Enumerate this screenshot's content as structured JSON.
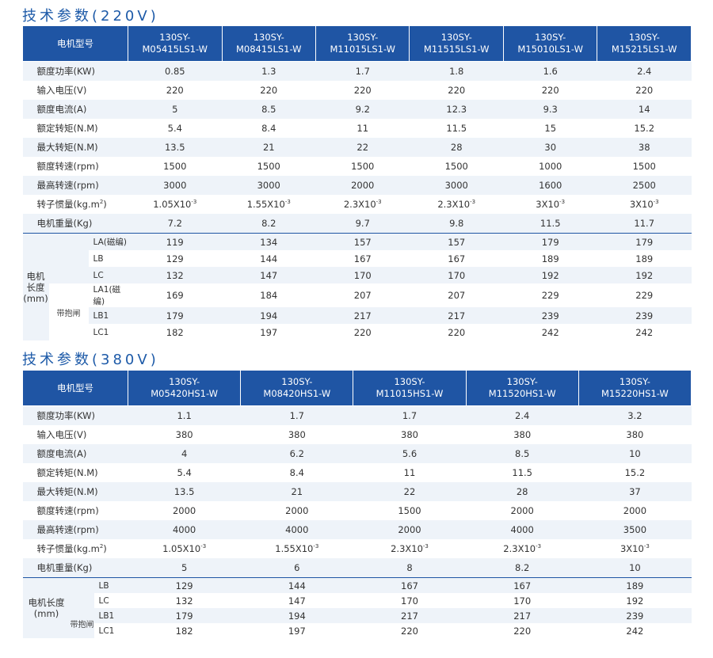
{
  "sections": [
    {
      "title": "技术参数(220V)",
      "header_label": "电机型号",
      "models": [
        [
          "130SY-",
          "M05415LS1-W"
        ],
        [
          "130SY-",
          "M08415LS1-W"
        ],
        [
          "130SY-",
          "M11015LS1-W"
        ],
        [
          "130SY-",
          "M11515LS1-W"
        ],
        [
          "130SY-",
          "M15010LS1-W"
        ],
        [
          "130SY-",
          "M15215LS1-W"
        ]
      ],
      "rows": [
        {
          "label": "额度功率(KW)",
          "values": [
            "0.85",
            "1.3",
            "1.7",
            "1.8",
            "1.6",
            "2.4"
          ]
        },
        {
          "label": "输入电压(V)",
          "values": [
            "220",
            "220",
            "220",
            "220",
            "220",
            "220"
          ]
        },
        {
          "label": "额度电流(A)",
          "values": [
            "5",
            "8.5",
            "9.2",
            "12.3",
            "9.3",
            "14"
          ]
        },
        {
          "label": "额定转矩(N.M)",
          "values": [
            "5.4",
            "8.4",
            "11",
            "11.5",
            "15",
            "15.2"
          ]
        },
        {
          "label": "最大转矩(N.M)",
          "values": [
            "13.5",
            "21",
            "22",
            "28",
            "30",
            "38"
          ]
        },
        {
          "label": "额度转速(rpm)",
          "values": [
            "1500",
            "1500",
            "1500",
            "1500",
            "1000",
            "1500"
          ]
        },
        {
          "label": "最高转速(rpm)",
          "values": [
            "3000",
            "3000",
            "2000",
            "3000",
            "1600",
            "2500"
          ]
        },
        {
          "label": "转子惯量(kg.m",
          "label_sup": "2",
          "label_tail": ")",
          "values": [
            "1.05X10",
            "1.55X10",
            "2.3X10",
            "2.3X10",
            "3X10",
            "3X10"
          ],
          "value_sup": "-3"
        },
        {
          "label": "电机重量(Kg)",
          "values": [
            "7.2",
            "8.2",
            "9.7",
            "9.8",
            "11.5",
            "11.7"
          ]
        }
      ],
      "length_group": {
        "label_line1": "电机长度",
        "label_line2": "(mm)",
        "brake_label": "带抱闸",
        "rows": [
          {
            "sub": "LA(磁编)",
            "values": [
              "119",
              "134",
              "157",
              "157",
              "179",
              "179"
            ]
          },
          {
            "sub": "LB",
            "values": [
              "129",
              "144",
              "167",
              "167",
              "189",
              "189"
            ]
          },
          {
            "sub": "LC",
            "values": [
              "132",
              "147",
              "170",
              "170",
              "192",
              "192"
            ]
          },
          {
            "sub": "LA1(磁编)",
            "values": [
              "169",
              "184",
              "207",
              "207",
              "229",
              "229"
            ]
          },
          {
            "sub": "LB1",
            "values": [
              "179",
              "194",
              "217",
              "217",
              "239",
              "239"
            ]
          },
          {
            "sub": "LC1",
            "values": [
              "182",
              "197",
              "220",
              "220",
              "242",
              "242"
            ]
          }
        ]
      }
    },
    {
      "title": "技术参数(380V)",
      "header_label": "电机型号",
      "models": [
        [
          "130SY-",
          "M05420HS1-W"
        ],
        [
          "130SY-",
          "M08420HS1-W"
        ],
        [
          "130SY-",
          "M11015HS1-W"
        ],
        [
          "130SY-",
          "M11520HS1-W"
        ],
        [
          "130SY-",
          "M15220HS1-W"
        ]
      ],
      "rows": [
        {
          "label": "额度功率(KW)",
          "values": [
            "1.1",
            "1.7",
            "1.7",
            "2.4",
            "3.2"
          ]
        },
        {
          "label": "输入电压(V)",
          "values": [
            "380",
            "380",
            "380",
            "380",
            "380"
          ]
        },
        {
          "label": "额度电流(A)",
          "values": [
            "4",
            "6.2",
            "5.6",
            "8.5",
            "10"
          ]
        },
        {
          "label": "额定转矩(N.M)",
          "values": [
            "5.4",
            "8.4",
            "11",
            "11.5",
            "15.2"
          ]
        },
        {
          "label": "最大转矩(N.M)",
          "values": [
            "13.5",
            "21",
            "22",
            "28",
            "37"
          ]
        },
        {
          "label": "额度转速(rpm)",
          "values": [
            "2000",
            "2000",
            "1500",
            "2000",
            "2000"
          ]
        },
        {
          "label": "最高转速(rpm)",
          "values": [
            "4000",
            "4000",
            "2000",
            "4000",
            "3500"
          ]
        },
        {
          "label": "转子惯量(kg.m",
          "label_sup": "2",
          "label_tail": ")",
          "values": [
            "1.05X10",
            "1.55X10",
            "2.3X10",
            "2.3X10",
            "3X10"
          ],
          "value_sup": "-3"
        },
        {
          "label": "电机重量(Kg)",
          "values": [
            "5",
            "6",
            "8",
            "8.2",
            "10"
          ]
        }
      ],
      "length_group": {
        "label_line1": "电机长度",
        "label_line2": "(mm)",
        "brake_label": "带抱闸",
        "rows": [
          {
            "sub": "LB",
            "values": [
              "129",
              "144",
              "167",
              "167",
              "189"
            ]
          },
          {
            "sub": "LC",
            "values": [
              "132",
              "147",
              "170",
              "170",
              "192"
            ]
          },
          {
            "sub": "LB1",
            "values": [
              "179",
              "194",
              "217",
              "217",
              "239"
            ]
          },
          {
            "sub": "LC1",
            "values": [
              "182",
              "197",
              "220",
              "220",
              "242"
            ]
          }
        ]
      }
    }
  ]
}
